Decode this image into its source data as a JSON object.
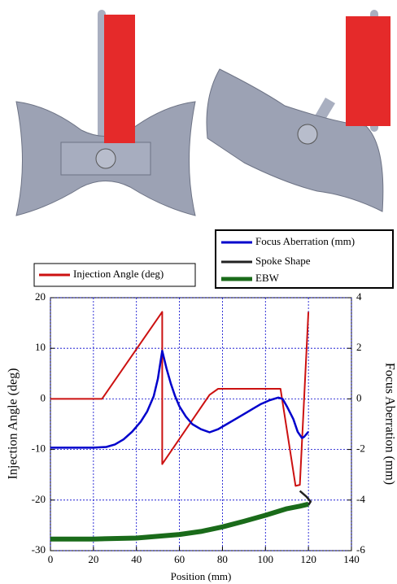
{
  "chart_data": {
    "type": "line",
    "xlabel": "Position (mm)",
    "ylabel": "Injection Angle (deg)",
    "y2label": "Focus Aberration (mm)",
    "xlim": [
      0,
      140
    ],
    "xticks": [
      0,
      20,
      40,
      60,
      80,
      100,
      120,
      140
    ],
    "ylim": [
      -30,
      20
    ],
    "yticks": [
      -30,
      -20,
      -10,
      0,
      10,
      20
    ],
    "y2lim": [
      -6,
      4
    ],
    "y2ticks": [
      -6,
      -4,
      -2,
      0,
      2,
      4
    ],
    "grid": true,
    "grid_color": "#0000cc",
    "series": [
      {
        "name": "Injection Angle (deg)",
        "color": "#cc1111",
        "x": [
          0,
          24,
          52,
          52,
          74,
          78,
          107,
          114,
          116,
          120
        ],
        "values": [
          0,
          0,
          17.2,
          -12.9,
          0.8,
          2,
          2,
          -17.2,
          -17,
          17.2
        ]
      },
      {
        "name": "Focus Aberration (mm)",
        "color": "#0000cc",
        "axis": "y2",
        "x": [
          0,
          10,
          20,
          26,
          30,
          34,
          38,
          42,
          45,
          48,
          50,
          52,
          54,
          56,
          58,
          60,
          63,
          66,
          70,
          74,
          78,
          82,
          86,
          90,
          94,
          98,
          102,
          106,
          108,
          110,
          113,
          115,
          117,
          118,
          120
        ],
        "values": [
          -1.93,
          -1.93,
          -1.93,
          -1.9,
          -1.8,
          -1.6,
          -1.3,
          -0.9,
          -0.5,
          0.1,
          0.8,
          1.9,
          1.2,
          0.6,
          0.1,
          -0.3,
          -0.7,
          -1.0,
          -1.2,
          -1.32,
          -1.2,
          -1.0,
          -0.8,
          -0.6,
          -0.4,
          -0.2,
          -0.05,
          0.05,
          0.0,
          -0.3,
          -0.8,
          -1.3,
          -1.55,
          -1.5,
          -1.3
        ]
      },
      {
        "name": "Spoke Shape",
        "color": "#222222",
        "x": [
          116,
          119,
          121,
          120
        ],
        "values": [
          -18.2,
          -19.3,
          -20.3,
          -21
        ]
      },
      {
        "name": "EBW",
        "color": "#1a6b1a",
        "x": [
          0,
          20,
          40,
          60,
          70,
          80,
          90,
          100,
          110,
          116,
          120
        ],
        "values": [
          -27.7,
          -27.7,
          -27.5,
          -26.8,
          -26.2,
          -25.3,
          -24.2,
          -23.0,
          -21.7,
          -21.2,
          -20.8
        ]
      }
    ]
  }
}
